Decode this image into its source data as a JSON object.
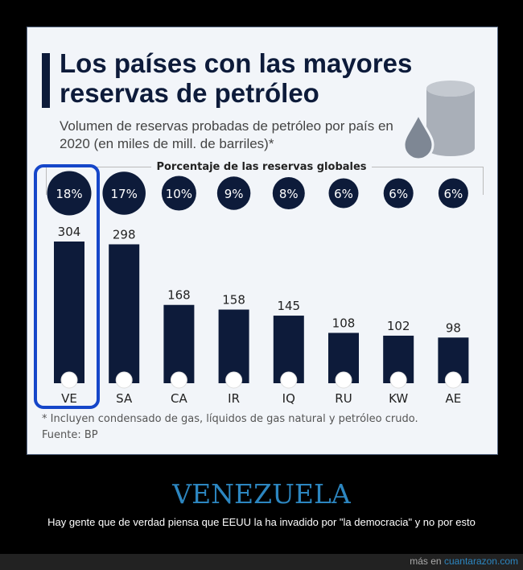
{
  "chart_data": {
    "type": "bar",
    "title": "Los países con las mayores reservas de petróleo",
    "subtitle": "Volumen de reservas probadas de petróleo por país en 2020 (en miles de mill. de barriles)*",
    "categories": [
      "VE",
      "SA",
      "CA",
      "IR",
      "IQ",
      "RU",
      "KW",
      "AE"
    ],
    "values": [
      304,
      298,
      168,
      158,
      145,
      108,
      102,
      98
    ],
    "share_title": "Porcentaje de las reservas globales",
    "shares": [
      "18%",
      "17%",
      "10%",
      "9%",
      "8%",
      "6%",
      "6%",
      "6%"
    ],
    "bar_color": "#0d1b3a",
    "highlighted": "VE",
    "highlight_color": "#1546c9",
    "note": "* Incluyen condensado de gas, líquidos de gas natural y petróleo crudo.",
    "source": "Fuente: BP"
  },
  "caption": {
    "title": "VENEZUELA",
    "text": "Hay gente que de verdad piensa que EEUU la ha invadido por \"la democracia\" y no por esto"
  },
  "footer": {
    "prefix": "más en",
    "link": "cuantarazon.com"
  }
}
